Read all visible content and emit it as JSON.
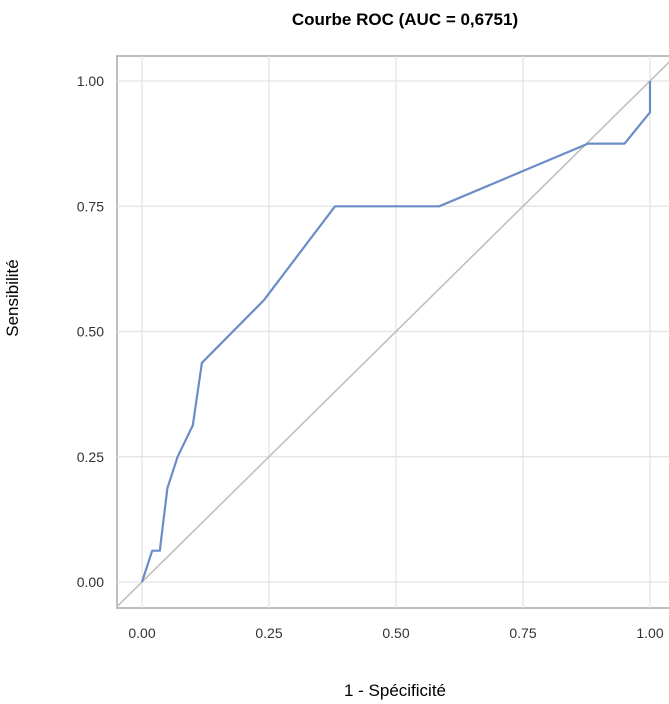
{
  "chart_data": {
    "type": "line",
    "title": "Courbe ROC (AUC = 0,6751)",
    "xlabel": "1 - Spécificité",
    "ylabel": "Sensibilité",
    "xlim": [
      0,
      1
    ],
    "ylim": [
      0,
      1
    ],
    "x_ticks": [
      0,
      0.25,
      0.5,
      0.75,
      1
    ],
    "x_tick_labels": [
      "0.00",
      "0.25",
      "0.50",
      "0.75",
      "1.00"
    ],
    "y_ticks": [
      0,
      0.25,
      0.5,
      0.75,
      1
    ],
    "y_tick_labels": [
      "0.00",
      "0.25",
      "0.50",
      "0.75",
      "1.00"
    ],
    "grid": true,
    "series": [
      {
        "color": "#6b8cc7",
        "x": [
          0,
          0.02,
          0.035,
          0.05,
          0.07,
          0.1,
          0.118,
          0.24,
          0.38,
          0.585,
          0.878,
          0.95,
          1.0,
          1.0
        ],
        "y": [
          0,
          0.0625,
          0.0625,
          0.1875,
          0.25,
          0.3125,
          0.4375,
          0.5625,
          0.75,
          0.75,
          0.875,
          0.875,
          0.9375,
          1.0
        ]
      }
    ],
    "reference_line": {
      "x": [
        0,
        1
      ],
      "y": [
        0,
        1
      ],
      "color": "#c0c0c0"
    }
  }
}
